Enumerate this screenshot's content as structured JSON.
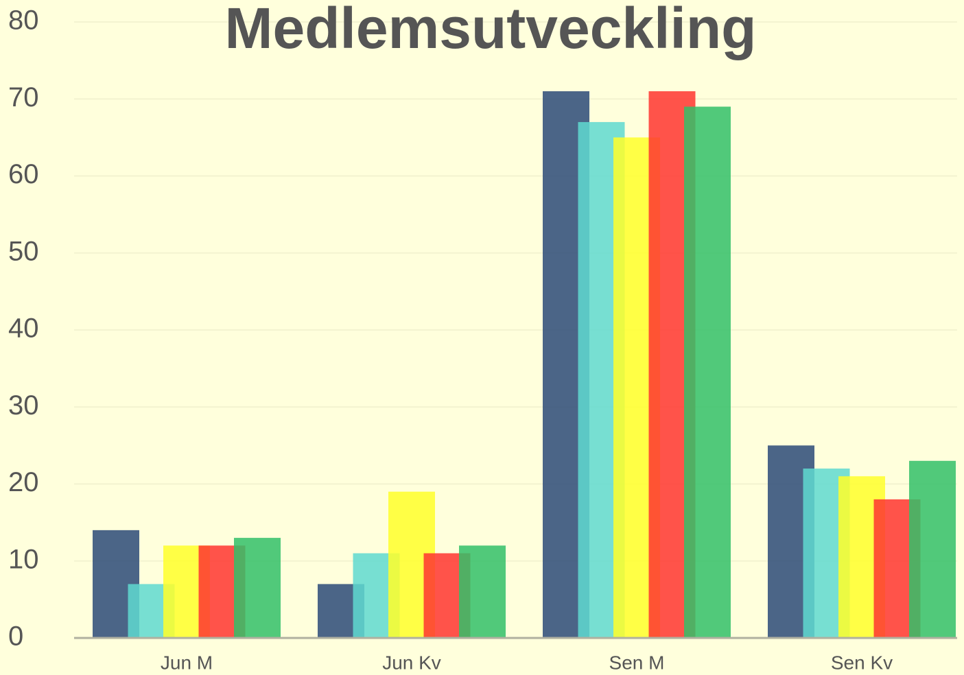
{
  "chart_data": {
    "type": "bar",
    "title": "Medlemsutveckling",
    "categories": [
      "Jun M",
      "Jun Kv",
      "Sen M",
      "Sen Kv"
    ],
    "series": [
      {
        "color": "#2c4a78",
        "values": [
          14,
          7,
          71,
          25
        ]
      },
      {
        "color": "#5fd9d0",
        "values": [
          7,
          11,
          67,
          22
        ]
      },
      {
        "color": "#ffff2a",
        "values": [
          12,
          19,
          65,
          21
        ]
      },
      {
        "color": "#ff3530",
        "values": [
          12,
          11,
          71,
          18
        ]
      },
      {
        "color": "#32c068",
        "values": [
          13,
          12,
          69,
          23
        ]
      }
    ],
    "ylim": [
      0,
      80
    ],
    "yticks": [
      0,
      10,
      20,
      30,
      40,
      50,
      60,
      70,
      80
    ],
    "grid": true
  }
}
